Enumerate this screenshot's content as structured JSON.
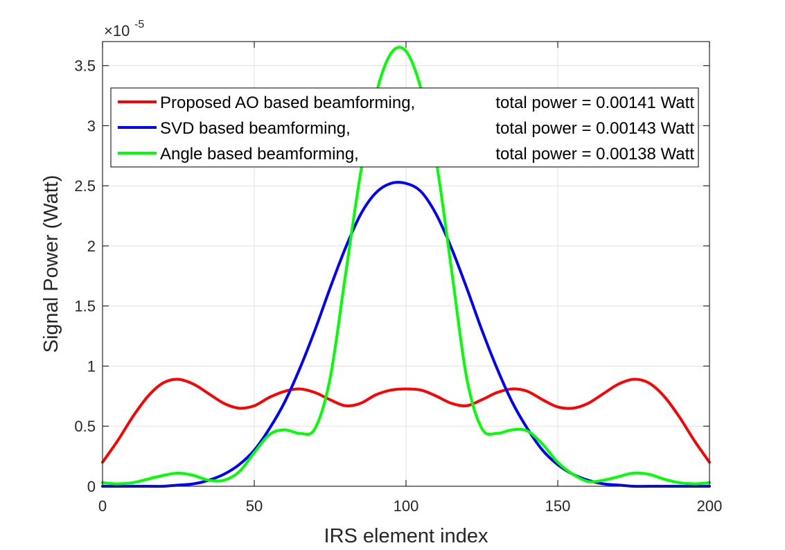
{
  "chart_data": {
    "type": "line",
    "xlabel": "IRS element index",
    "ylabel": "Signal Power (Watt)",
    "exponent": {
      "base": "×10",
      "power": "-5"
    },
    "xlim": [
      0,
      200
    ],
    "ylim": [
      0,
      3.7
    ],
    "xticks": [
      0,
      50,
      100,
      150,
      200
    ],
    "xtick_labels": [
      "0",
      "50",
      "100",
      "150",
      "200"
    ],
    "yticks": [
      0,
      0.5,
      1,
      1.5,
      2,
      2.5,
      3,
      3.5
    ],
    "ytick_labels": [
      "0",
      "0.5",
      "1",
      "1.5",
      "2",
      "2.5",
      "3",
      "3.5"
    ],
    "grid": true,
    "legend_position": "upper-center",
    "series": [
      {
        "name": "Proposed AO based beamforming,",
        "power_label": "total power = 0.00141 Watt",
        "color": "#ff0000",
        "x": [
          0,
          5,
          10,
          15,
          20,
          25,
          30,
          35,
          40,
          45,
          50,
          55,
          60,
          65,
          70,
          75,
          80,
          85,
          90,
          95,
          100,
          105,
          110,
          115,
          120,
          125,
          130,
          135,
          140,
          145,
          150,
          155,
          160,
          165,
          170,
          175,
          180,
          185,
          190,
          195,
          200
        ],
        "values": [
          0.2,
          0.38,
          0.58,
          0.75,
          0.86,
          0.89,
          0.85,
          0.77,
          0.69,
          0.65,
          0.67,
          0.74,
          0.79,
          0.81,
          0.78,
          0.72,
          0.67,
          0.69,
          0.76,
          0.8,
          0.81,
          0.8,
          0.75,
          0.69,
          0.67,
          0.72,
          0.78,
          0.81,
          0.79,
          0.72,
          0.66,
          0.65,
          0.69,
          0.77,
          0.85,
          0.89,
          0.86,
          0.75,
          0.58,
          0.38,
          0.2
        ]
      },
      {
        "name": "SVD based beamforming,",
        "power_label": "total power = 0.00143 Watt",
        "color": "#0000ff",
        "x": [
          0,
          5,
          10,
          15,
          20,
          25,
          30,
          35,
          40,
          45,
          50,
          55,
          60,
          65,
          70,
          75,
          80,
          85,
          90,
          95,
          100,
          105,
          110,
          115,
          120,
          125,
          130,
          135,
          140,
          145,
          150,
          155,
          160,
          165,
          170,
          175,
          180,
          185,
          190,
          195,
          200
        ],
        "values": [
          0,
          0,
          0,
          0,
          0,
          0.01,
          0.02,
          0.05,
          0.1,
          0.18,
          0.3,
          0.48,
          0.7,
          0.98,
          1.3,
          1.65,
          1.98,
          2.26,
          2.44,
          2.52,
          2.52,
          2.45,
          2.26,
          1.98,
          1.65,
          1.3,
          0.98,
          0.7,
          0.48,
          0.3,
          0.18,
          0.1,
          0.05,
          0.02,
          0.01,
          0,
          0,
          0,
          0,
          0,
          0
        ]
      },
      {
        "name": "Angle based beamforming,",
        "power_label": "total power = 0.00138 Watt",
        "color": "#00ff00",
        "x": [
          0,
          5,
          10,
          15,
          20,
          25,
          30,
          35,
          40,
          45,
          50,
          55,
          60,
          65,
          70,
          75,
          80,
          85,
          90,
          95,
          100,
          105,
          110,
          115,
          120,
          125,
          130,
          135,
          140,
          145,
          150,
          155,
          160,
          165,
          170,
          175,
          180,
          185,
          190,
          195,
          200
        ],
        "values": [
          0.03,
          0.02,
          0.03,
          0.06,
          0.09,
          0.11,
          0.09,
          0.05,
          0.05,
          0.12,
          0.28,
          0.43,
          0.47,
          0.44,
          0.48,
          0.9,
          1.75,
          2.6,
          3.25,
          3.6,
          3.62,
          3.3,
          2.7,
          1.8,
          0.9,
          0.48,
          0.44,
          0.47,
          0.46,
          0.35,
          0.2,
          0.1,
          0.04,
          0.05,
          0.08,
          0.11,
          0.1,
          0.06,
          0.03,
          0.02,
          0.03
        ]
      }
    ]
  }
}
